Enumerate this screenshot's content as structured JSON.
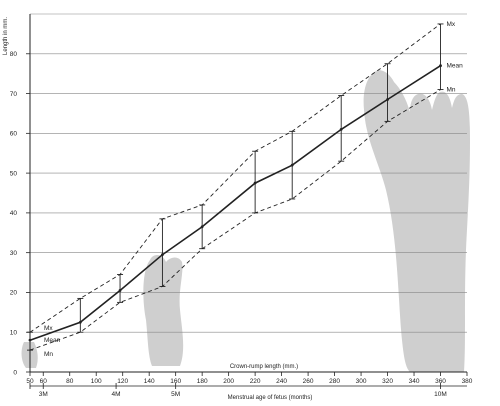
{
  "chart_data": {
    "type": "line",
    "title": "",
    "xlabel": "Crown-rump length (mm.)",
    "ylabel": "Length in mm.",
    "secondary_xlabel": "Menstrual age of fetus (months)",
    "xlim": [
      50,
      380
    ],
    "ylim": [
      0,
      90
    ],
    "grid": true,
    "x_ticks": [
      50,
      60,
      80,
      100,
      120,
      140,
      160,
      180,
      200,
      220,
      240,
      260,
      280,
      300,
      320,
      340,
      360,
      380
    ],
    "x_tick_labels": [
      "50",
      "60",
      "80",
      "100",
      "120",
      "140",
      "160",
      "180",
      "200",
      "220",
      "240",
      "260",
      "280",
      "300",
      "320",
      "340",
      "360",
      "380"
    ],
    "y_ticks": [
      0,
      10,
      20,
      30,
      40,
      50,
      60,
      70,
      80
    ],
    "y_tick_labels": [
      "0",
      "10",
      "20",
      "30",
      "40",
      "50",
      "60",
      "70",
      "80"
    ],
    "month_ticks": [
      {
        "x": 50,
        "label": ""
      },
      {
        "x": 60,
        "label": "3M"
      },
      {
        "x": 115,
        "label": "4M"
      },
      {
        "x": 160,
        "label": "5M"
      },
      {
        "x": 360,
        "label": "10M"
      }
    ],
    "x": [
      50,
      88,
      118,
      150,
      180,
      220,
      248,
      285,
      320,
      360
    ],
    "series": [
      {
        "name": "Mx",
        "style": "dashed",
        "values": [
          10,
          18.5,
          24.5,
          38.5,
          42,
          55.5,
          60.5,
          69.5,
          77.5,
          87.5
        ]
      },
      {
        "name": "Mean",
        "style": "solid",
        "values": [
          8,
          12.5,
          20.5,
          29.5,
          36.5,
          47.5,
          52,
          61,
          68.5,
          77
        ]
      },
      {
        "name": "Mn",
        "style": "dashed",
        "values": [
          5.5,
          10,
          17.5,
          21.5,
          31,
          40,
          43.5,
          53,
          63,
          71
        ]
      }
    ],
    "series_label_positions": [
      "left",
      "right"
    ],
    "colors": {
      "line": "#222222",
      "grid": "#888888",
      "feet": "#cfcfcf"
    }
  }
}
